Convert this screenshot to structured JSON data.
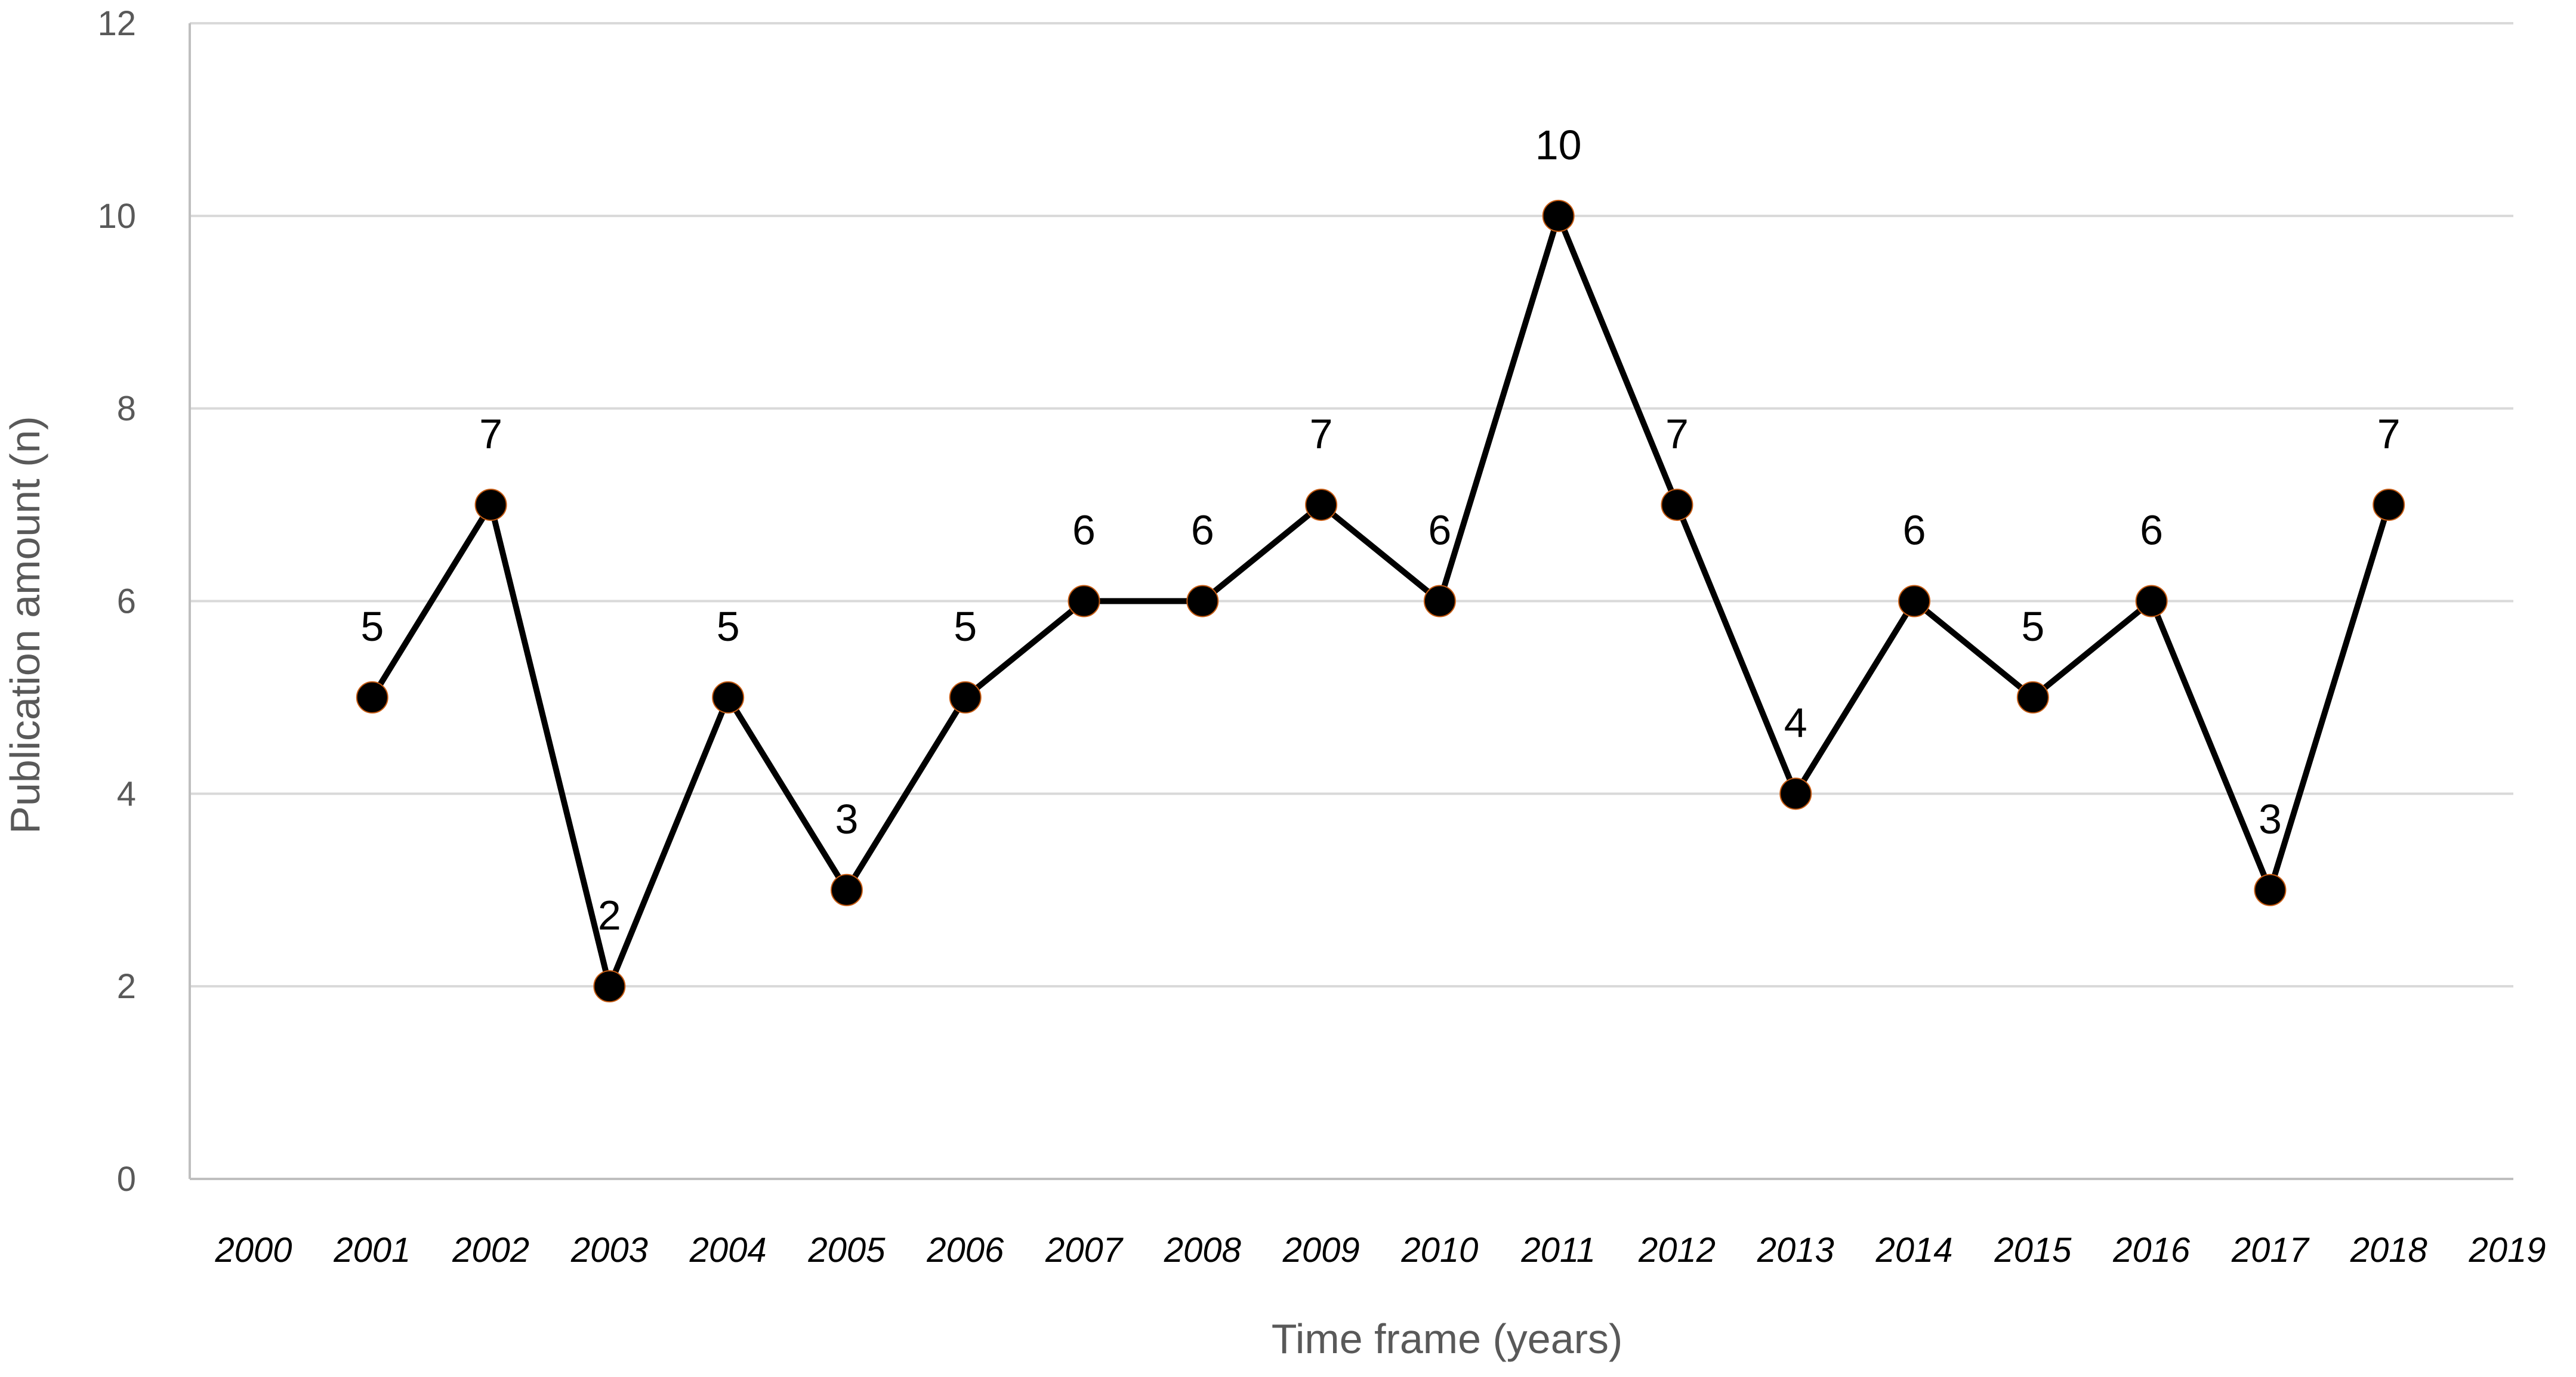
{
  "chart_data": {
    "type": "line",
    "title": "",
    "xlabel": "Time frame (years)",
    "ylabel": "Publication amount (n)",
    "x_ticks": [
      "2000",
      "2001",
      "2002",
      "2003",
      "2004",
      "2005",
      "2006",
      "2007",
      "2008",
      "2009",
      "2010",
      "2011",
      "2012",
      "2013",
      "2014",
      "2015",
      "2016",
      "2017",
      "2018",
      "2019"
    ],
    "y_ticks": [
      0,
      2,
      4,
      6,
      8,
      10,
      12
    ],
    "ylim": [
      0,
      12
    ],
    "xlim": [
      2000,
      2019
    ],
    "grid": true,
    "legend": "none",
    "series": [
      {
        "x": [
          2001,
          2002,
          2003,
          2004,
          2005,
          2006,
          2007,
          2008,
          2009,
          2010,
          2011,
          2012,
          2013,
          2014,
          2015,
          2016,
          2017,
          2018
        ],
        "values": [
          5,
          7,
          2,
          5,
          3,
          5,
          6,
          6,
          7,
          6,
          10,
          7,
          4,
          6,
          5,
          6,
          3,
          7
        ],
        "labels": [
          "5",
          "7",
          "2",
          "5",
          "3",
          "5",
          "6",
          "6",
          "7",
          "6",
          "10",
          "7",
          "4",
          "6",
          "5",
          "6",
          "3",
          "7"
        ],
        "color": "#000000",
        "marker_edge_color": "#c55a11"
      }
    ]
  }
}
